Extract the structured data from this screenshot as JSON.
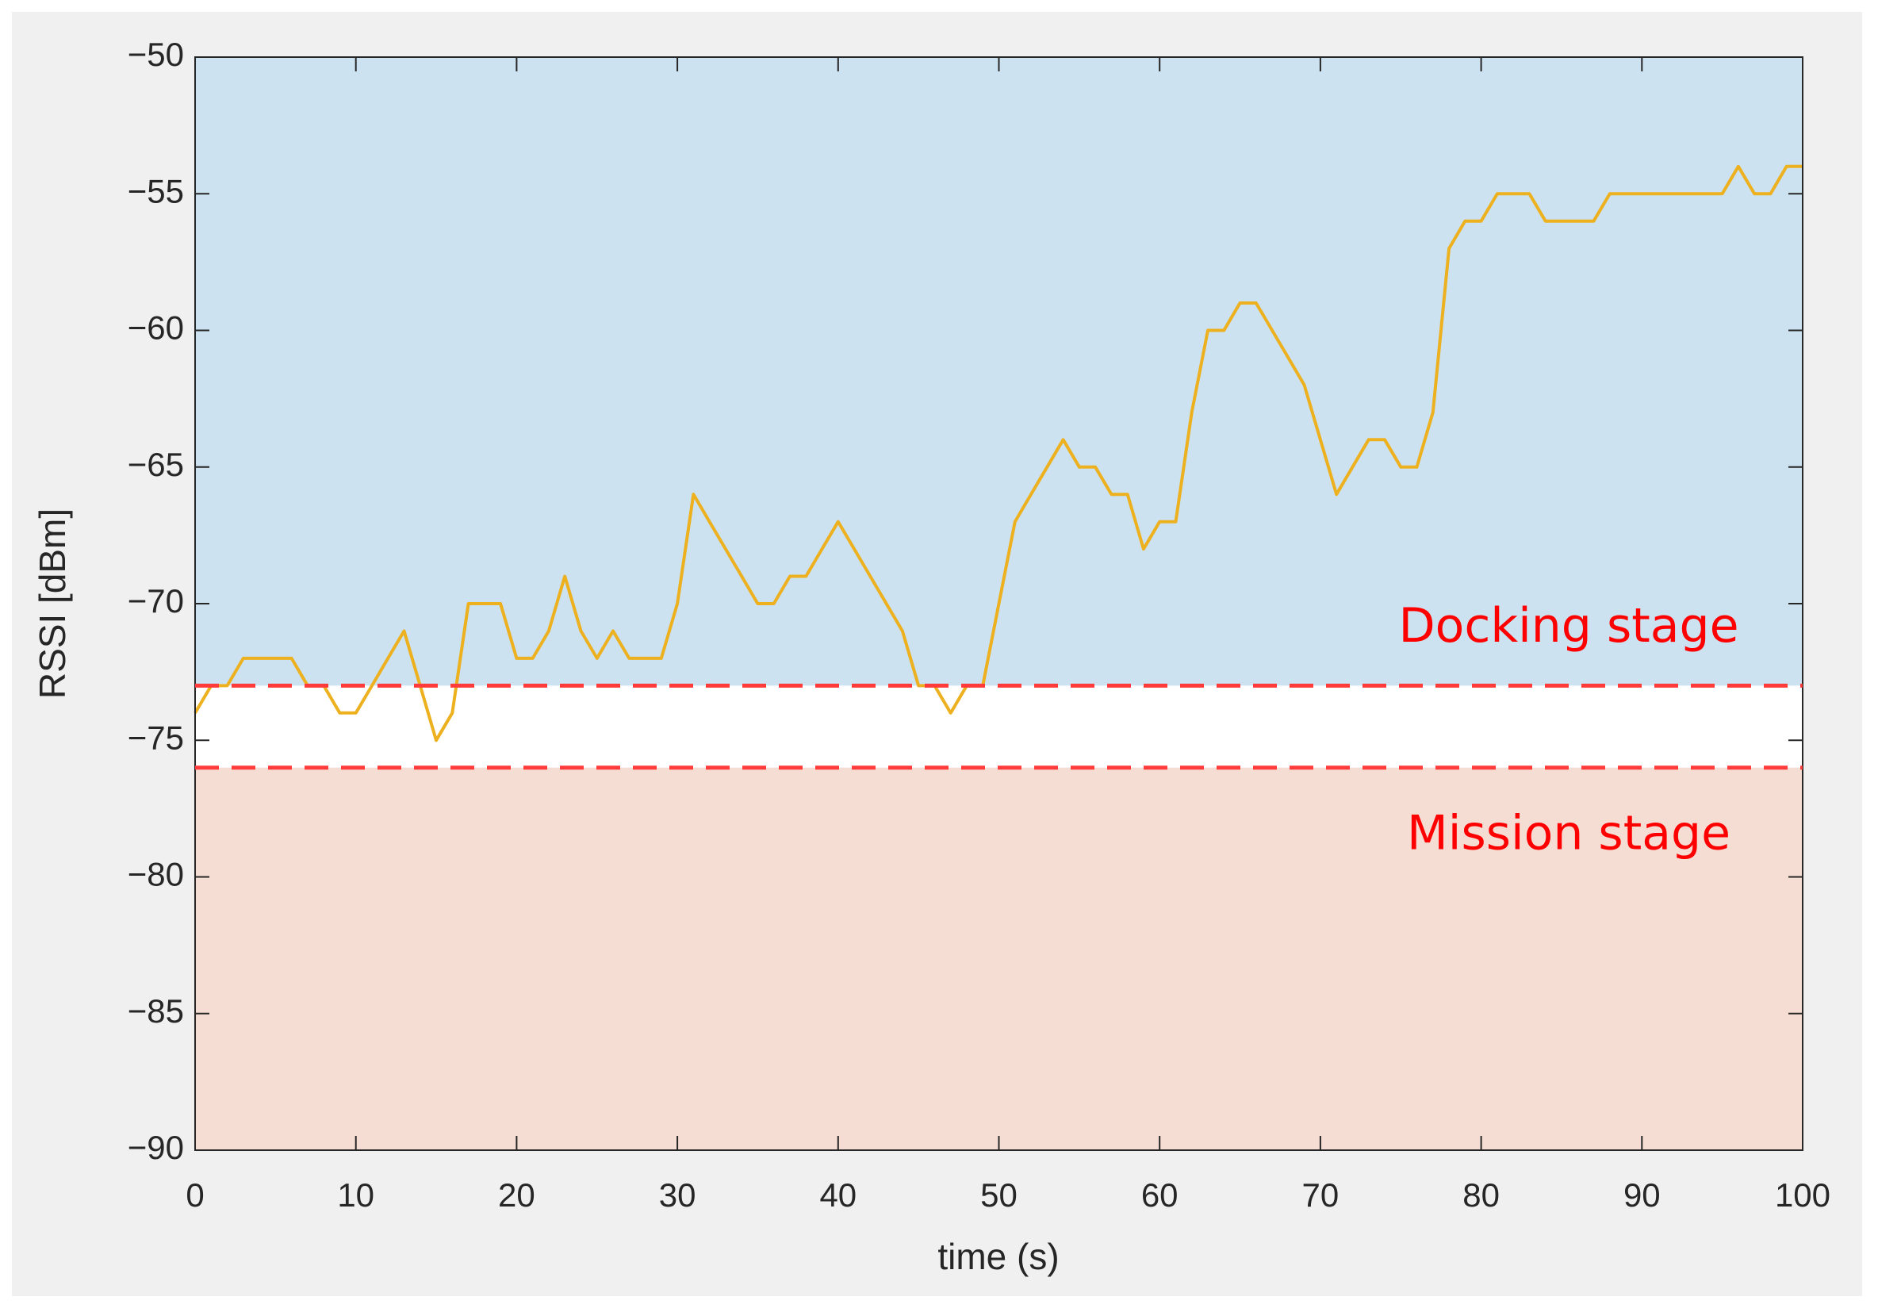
{
  "chart_data": {
    "type": "line",
    "xlabel": "time (s)",
    "ylabel": "RSSI [dBm]",
    "x": [
      0,
      1,
      2,
      3,
      4,
      5,
      6,
      7,
      8,
      9,
      10,
      11,
      12,
      13,
      14,
      15,
      16,
      17,
      18,
      19,
      20,
      21,
      22,
      23,
      24,
      25,
      26,
      27,
      28,
      29,
      30,
      31,
      32,
      33,
      34,
      35,
      36,
      37,
      38,
      39,
      40,
      41,
      42,
      43,
      44,
      45,
      46,
      47,
      48,
      49,
      50,
      51,
      52,
      53,
      54,
      55,
      56,
      57,
      58,
      59,
      60,
      61,
      62,
      63,
      64,
      65,
      66,
      67,
      68,
      69,
      70,
      71,
      72,
      73,
      74,
      75,
      76,
      77,
      78,
      79,
      80,
      81,
      82,
      83,
      84,
      85,
      86,
      87,
      88,
      89,
      90,
      91,
      92,
      93,
      94,
      95,
      96,
      97,
      98,
      99,
      100
    ],
    "series": [
      {
        "color": "#edb120",
        "values": [
          -74,
          -73,
          -73,
          -72,
          -72,
          -72,
          -72,
          -73,
          -73,
          -74,
          -74,
          -73,
          -72,
          -71,
          -73,
          -75,
          -74,
          -70,
          -70,
          -70,
          -72,
          -72,
          -71,
          -69,
          -71,
          -72,
          -71,
          -72,
          -72,
          -72,
          -70,
          -66,
          -67,
          -68,
          -69,
          -70,
          -70,
          -69,
          -69,
          -68,
          -67,
          -68,
          -69,
          -70,
          -71,
          -73,
          -73,
          -74,
          -73,
          -73,
          -70,
          -67,
          -66,
          -65,
          -64,
          -65,
          -65,
          -66,
          -66,
          -68,
          -67,
          -67,
          -63,
          -60,
          -60,
          -59,
          -59,
          -60,
          -61,
          -62,
          -64,
          -66,
          -65,
          -64,
          -64,
          -65,
          -65,
          -63,
          -57,
          -56,
          -56,
          -55,
          -55,
          -55,
          -56,
          -56,
          -56,
          -56,
          -55,
          -55,
          -55,
          -55,
          -55,
          -55,
          -55,
          -55,
          -54,
          -55,
          -55,
          -54,
          -54
        ]
      }
    ],
    "zones": [
      {
        "label": "Docking stage",
        "min": -73,
        "color": "#cce2f0"
      },
      {
        "label": "Mission stage",
        "max": -76,
        "color": "#f6ddd3"
      }
    ],
    "threshold_color": "#ff3b3b",
    "zone_label_color": "#ff0000",
    "xlim": [
      0,
      100
    ],
    "xticks": [
      0,
      10,
      20,
      30,
      40,
      50,
      60,
      70,
      80,
      90,
      100
    ],
    "ylim": [
      -90,
      -50
    ],
    "yticks": [
      {
        "value": -90,
        "label": "−90"
      },
      {
        "value": -85,
        "label": "−85"
      },
      {
        "value": -80,
        "label": "−80"
      },
      {
        "value": -75,
        "label": "−75"
      },
      {
        "value": -70,
        "label": "−70"
      },
      {
        "value": -65,
        "label": "−65"
      },
      {
        "value": -60,
        "label": "−60"
      },
      {
        "value": -55,
        "label": "−55"
      },
      {
        "value": -50,
        "label": "−50"
      }
    ]
  }
}
